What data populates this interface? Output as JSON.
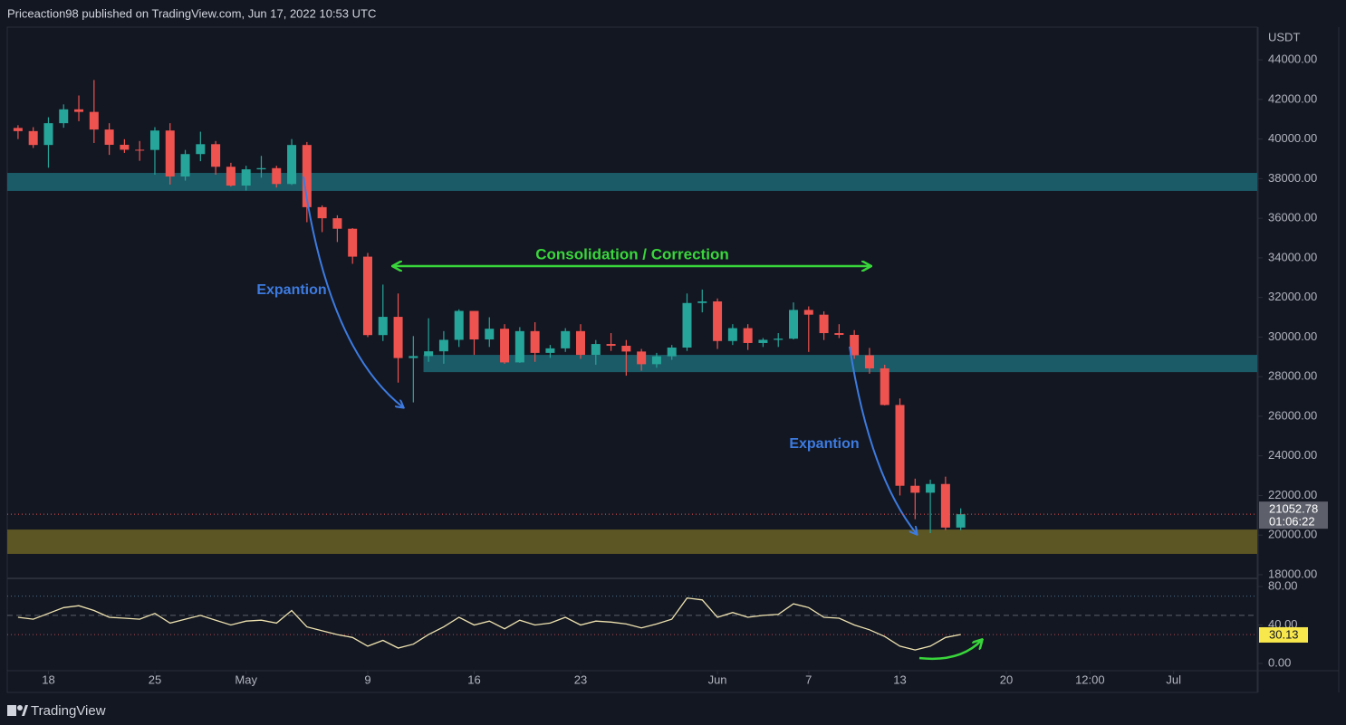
{
  "header": {
    "title": "Priceaction98 published on TradingView.com, Jun 17, 2022 10:53 UTC"
  },
  "footer": {
    "brand": "TradingView"
  },
  "annotations": [
    "Consolidation / Correction",
    "Expantion",
    "Expantion"
  ],
  "chart_data": [
    {
      "type": "candlestick",
      "y_unit": "USDT",
      "up_color": "#26a69a",
      "down_color": "#ef5350",
      "grid": false,
      "x": [
        "2022-04-16",
        "2022-04-17",
        "2022-04-18",
        "2022-04-19",
        "2022-04-20",
        "2022-04-21",
        "2022-04-22",
        "2022-04-23",
        "2022-04-24",
        "2022-04-25",
        "2022-04-26",
        "2022-04-27",
        "2022-04-28",
        "2022-04-29",
        "2022-04-30",
        "2022-05-01",
        "2022-05-02",
        "2022-05-03",
        "2022-05-04",
        "2022-05-05",
        "2022-05-06",
        "2022-05-07",
        "2022-05-08",
        "2022-05-09",
        "2022-05-10",
        "2022-05-11",
        "2022-05-12",
        "2022-05-13",
        "2022-05-14",
        "2022-05-15",
        "2022-05-16",
        "2022-05-17",
        "2022-05-18",
        "2022-05-19",
        "2022-05-20",
        "2022-05-21",
        "2022-05-22",
        "2022-05-23",
        "2022-05-24",
        "2022-05-25",
        "2022-05-26",
        "2022-05-27",
        "2022-05-28",
        "2022-05-29",
        "2022-05-30",
        "2022-05-31",
        "2022-06-01",
        "2022-06-02",
        "2022-06-03",
        "2022-06-04",
        "2022-06-05",
        "2022-06-06",
        "2022-06-07",
        "2022-06-08",
        "2022-06-09",
        "2022-06-10",
        "2022-06-11",
        "2022-06-12",
        "2022-06-13",
        "2022-06-14",
        "2022-06-15",
        "2022-06-16",
        "2022-06-17"
      ],
      "open": [
        40560,
        40400,
        39700,
        40800,
        41500,
        41370,
        40480,
        39710,
        39460,
        39450,
        40430,
        38110,
        39240,
        39740,
        38600,
        37650,
        38470,
        38530,
        37730,
        39700,
        36560,
        36000,
        35470,
        34060,
        30100,
        31020,
        28940,
        29040,
        29280,
        29860,
        31320,
        29880,
        30420,
        28720,
        30300,
        29200,
        29430,
        30300,
        29100,
        29650,
        29560,
        29270,
        28630,
        29030,
        29470,
        31720,
        31800,
        29800,
        30450,
        29700,
        29860,
        29920,
        31370,
        31130,
        30200,
        30110,
        29080,
        28420,
        26570,
        22490,
        22140,
        22580,
        20380
      ],
      "high": [
        40700,
        40600,
        41100,
        41750,
        42200,
        42980,
        40800,
        39990,
        39900,
        40600,
        40800,
        39450,
        40370,
        39900,
        38800,
        38650,
        39150,
        38650,
        40000,
        39850,
        36650,
        36150,
        35500,
        34250,
        32650,
        32200,
        30050,
        30950,
        30300,
        31400,
        31320,
        31000,
        30650,
        30500,
        30750,
        29600,
        30450,
        30650,
        29850,
        30200,
        29850,
        29400,
        29200,
        29600,
        32200,
        32400,
        31950,
        30650,
        30650,
        29950,
        30200,
        31750,
        31550,
        31300,
        30650,
        30350,
        29450,
        28600,
        26900,
        22850,
        22800,
        22950,
        21350
      ],
      "low": [
        40000,
        39550,
        38550,
        40570,
        40900,
        39800,
        39200,
        39300,
        38900,
        38200,
        37700,
        37900,
        38880,
        38200,
        37600,
        37400,
        38050,
        37550,
        37680,
        35800,
        35300,
        34800,
        33700,
        30000,
        29800,
        27700,
        26700,
        28750,
        28650,
        29500,
        29100,
        29500,
        28650,
        28700,
        28750,
        28950,
        29250,
        28900,
        28600,
        29300,
        28050,
        28300,
        28450,
        28850,
        29300,
        31250,
        29400,
        29600,
        29350,
        29500,
        29500,
        29880,
        29250,
        29850,
        29950,
        28900,
        28150,
        26550,
        22000,
        20800,
        20100,
        20250,
        20250
      ],
      "close": [
        40400,
        39700,
        40800,
        41500,
        41370,
        40480,
        39710,
        39460,
        39450,
        40430,
        38110,
        39240,
        39740,
        38600,
        37650,
        38470,
        38530,
        37730,
        39700,
        36560,
        36000,
        35470,
        34060,
        30100,
        31020,
        28940,
        29040,
        29280,
        29860,
        31320,
        29880,
        30420,
        28720,
        30300,
        29200,
        29430,
        30300,
        29100,
        29650,
        29560,
        29270,
        28630,
        29030,
        29470,
        31720,
        31800,
        29800,
        30450,
        29700,
        29860,
        29920,
        31370,
        31130,
        30200,
        30110,
        29080,
        28420,
        26570,
        22490,
        22140,
        22580,
        20380,
        21052.78
      ],
      "xlim": [
        "2022-04-15T07:00:00Z",
        "2022-07-06T12:00:00Z"
      ],
      "xticks": [
        {
          "value": "2022-04-18",
          "label": "18"
        },
        {
          "value": "2022-04-25",
          "label": "25"
        },
        {
          "value": "2022-05-01",
          "label": "May"
        },
        {
          "value": "2022-05-09",
          "label": "9"
        },
        {
          "value": "2022-05-16",
          "label": "16"
        },
        {
          "value": "2022-05-23",
          "label": "23"
        },
        {
          "value": "2022-06-01",
          "label": "Jun"
        },
        {
          "value": "2022-06-07",
          "label": "7"
        },
        {
          "value": "2022-06-13",
          "label": "13"
        },
        {
          "value": "2022-06-20",
          "label": "20"
        },
        {
          "value": "2022-06-25T12:00:00Z",
          "label": "12:00"
        },
        {
          "value": "2022-07-01",
          "label": "Jul"
        }
      ],
      "ylim": [
        17860,
        45650
      ],
      "yticks": [
        {
          "value": 18000,
          "label": "18000.00"
        },
        {
          "value": 20000,
          "label": "20000.00"
        },
        {
          "value": 22000,
          "label": "22000.00"
        },
        {
          "value": 24000,
          "label": "24000.00"
        },
        {
          "value": 26000,
          "label": "26000.00"
        },
        {
          "value": 28000,
          "label": "28000.00"
        },
        {
          "value": 30000,
          "label": "30000.00"
        },
        {
          "value": 32000,
          "label": "32000.00"
        },
        {
          "value": 34000,
          "label": "34000.00"
        },
        {
          "value": 36000,
          "label": "36000.00"
        },
        {
          "value": 38000,
          "label": "38000.00"
        },
        {
          "value": 40000,
          "label": "40000.00"
        },
        {
          "value": 42000,
          "label": "42000.00"
        },
        {
          "value": 44000,
          "label": "44000.00"
        }
      ],
      "last_price": {
        "value": 21052.78,
        "label": "21052.78",
        "countdown": "01:06:22"
      },
      "zones": [
        {
          "from": 38290,
          "to": 37380,
          "color": "#1b5b68"
        },
        {
          "from": 29100,
          "to": 28230,
          "color": "#1b5b68",
          "start": "2022-05-12T16:00:00Z"
        },
        {
          "from": 20280,
          "to": 19050,
          "color": "#5c5524"
        }
      ]
    },
    {
      "type": "line",
      "color": "#efe3b0",
      "x": [
        "2022-04-16",
        "2022-04-17",
        "2022-04-18",
        "2022-04-19",
        "2022-04-20",
        "2022-04-21",
        "2022-04-22",
        "2022-04-23",
        "2022-04-24",
        "2022-04-25",
        "2022-04-26",
        "2022-04-27",
        "2022-04-28",
        "2022-04-29",
        "2022-04-30",
        "2022-05-01",
        "2022-05-02",
        "2022-05-03",
        "2022-05-04",
        "2022-05-05",
        "2022-05-06",
        "2022-05-07",
        "2022-05-08",
        "2022-05-09",
        "2022-05-10",
        "2022-05-11",
        "2022-05-12",
        "2022-05-13",
        "2022-05-14",
        "2022-05-15",
        "2022-05-16",
        "2022-05-17",
        "2022-05-18",
        "2022-05-19",
        "2022-05-20",
        "2022-05-21",
        "2022-05-22",
        "2022-05-23",
        "2022-05-24",
        "2022-05-25",
        "2022-05-26",
        "2022-05-27",
        "2022-05-28",
        "2022-05-29",
        "2022-05-30",
        "2022-05-31",
        "2022-06-01",
        "2022-06-02",
        "2022-06-03",
        "2022-06-04",
        "2022-06-05",
        "2022-06-06",
        "2022-06-07",
        "2022-06-08",
        "2022-06-09",
        "2022-06-10",
        "2022-06-11",
        "2022-06-12",
        "2022-06-13",
        "2022-06-14",
        "2022-06-15",
        "2022-06-16",
        "2022-06-17"
      ],
      "values": [
        48,
        46,
        52,
        58,
        60,
        55,
        48,
        47,
        46,
        52,
        42,
        46,
        50,
        45,
        40,
        44,
        45,
        42,
        55,
        38,
        34,
        30,
        27,
        18,
        24,
        16,
        20,
        30,
        38,
        48,
        40,
        44,
        36,
        45,
        40,
        42,
        48,
        40,
        44,
        43,
        41,
        37,
        41,
        46,
        68,
        66,
        48,
        53,
        48,
        50,
        51,
        62,
        58,
        48,
        47,
        40,
        35,
        28,
        18,
        14,
        18,
        27,
        30.13
      ],
      "ylim": [
        -6.6,
        87.5
      ],
      "yticks": [
        {
          "value": 0,
          "label": "0.00"
        },
        {
          "value": 40,
          "label": "40.00"
        },
        {
          "value": 80,
          "label": "80.00"
        }
      ],
      "levels": [
        70,
        50,
        30
      ],
      "last_value": {
        "value": 30.13,
        "label": "30.13"
      }
    }
  ]
}
